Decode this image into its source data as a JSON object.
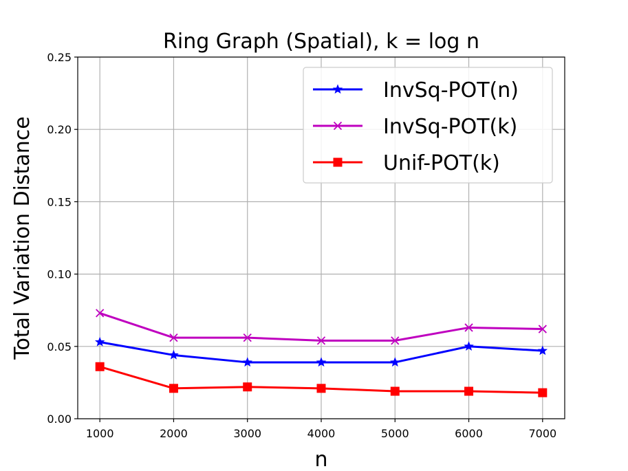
{
  "chart_data": {
    "type": "line",
    "title": "Ring Graph (Spatial), k = log n",
    "xlabel": "n",
    "ylabel": "Total Variation Distance",
    "x": [
      1000,
      2000,
      3000,
      4000,
      5000,
      6000,
      7000
    ],
    "xlim": [
      700,
      7300
    ],
    "ylim": [
      0,
      0.25
    ],
    "xticks": [
      1000,
      2000,
      3000,
      4000,
      5000,
      6000,
      7000
    ],
    "yticks": [
      0.0,
      0.05,
      0.1,
      0.15,
      0.2,
      0.25
    ],
    "ytick_labels": [
      "0.00",
      "0.05",
      "0.10",
      "0.15",
      "0.20",
      "0.25"
    ],
    "grid": true,
    "legend_position": "top-right",
    "series": [
      {
        "name": "InvSq-POT(n)",
        "color": "#0000ff",
        "marker": "star",
        "values": [
          0.053,
          0.044,
          0.039,
          0.039,
          0.039,
          0.05,
          0.047
        ]
      },
      {
        "name": "InvSq-POT(k)",
        "color": "#bf00bf",
        "marker": "x",
        "values": [
          0.073,
          0.056,
          0.056,
          0.054,
          0.054,
          0.063,
          0.062
        ]
      },
      {
        "name": "Unif-POT(k)",
        "color": "#ff0000",
        "marker": "square",
        "values": [
          0.036,
          0.021,
          0.022,
          0.021,
          0.019,
          0.019,
          0.018
        ]
      }
    ]
  }
}
